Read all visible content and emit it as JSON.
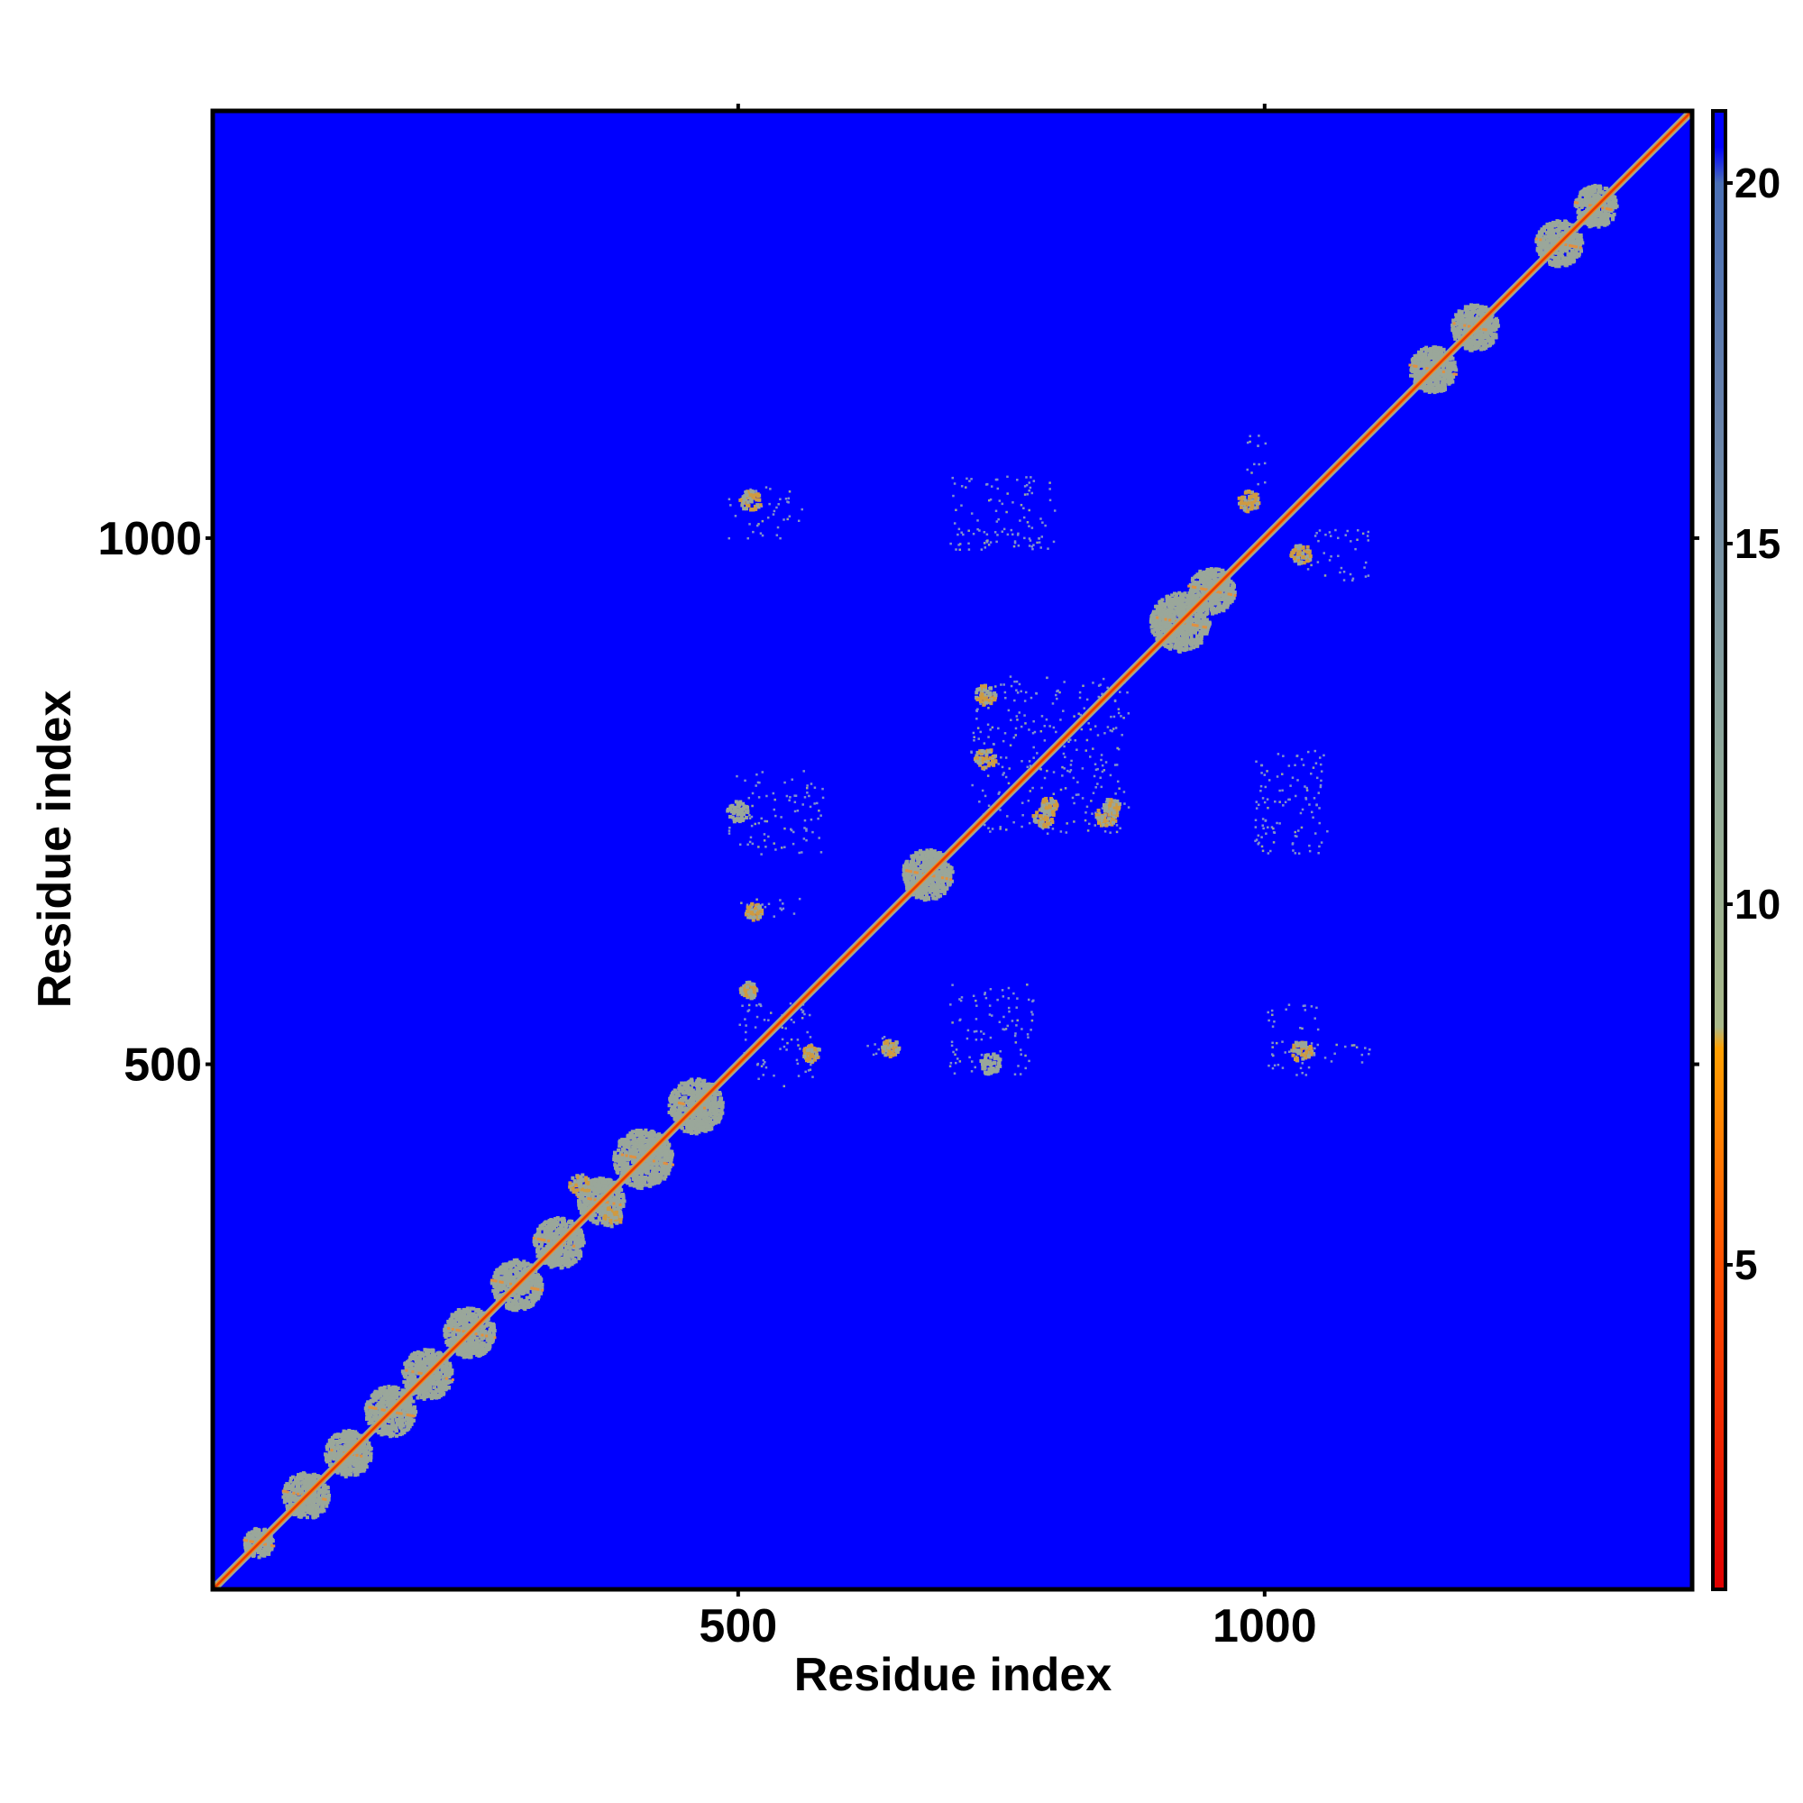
{
  "chart_data": {
    "type": "heatmap",
    "title": "",
    "xlabel": "Residue index",
    "ylabel": "Residue index",
    "xlim": [
      1,
      1406
    ],
    "ylim": [
      1,
      1406
    ],
    "x_ticks": [
      500,
      1000
    ],
    "x_tick_labels": [
      "500",
      "1000"
    ],
    "y_ticks": [
      500,
      1000
    ],
    "y_tick_labels": [
      "500",
      "1000"
    ],
    "colorbar": {
      "range": [
        0.5,
        21
      ],
      "ticks": [
        5,
        10,
        15,
        20
      ],
      "tick_labels": [
        "5",
        "10",
        "15",
        "20"
      ],
      "stops": [
        {
          "value": 0.5,
          "color": "#e00000"
        },
        {
          "value": 5,
          "color": "#ff5000"
        },
        {
          "value": 8,
          "color": "#ffa000"
        },
        {
          "value": 8.3,
          "color": "#a9b98a"
        },
        {
          "value": 12,
          "color": "#8fa89a"
        },
        {
          "value": 17,
          "color": "#6680aa"
        },
        {
          "value": 20,
          "color": "#4a6fb5"
        },
        {
          "value": 20.5,
          "color": "#0000ff"
        },
        {
          "value": 21,
          "color": "#0000ff"
        }
      ]
    },
    "background_color": "#0000ff",
    "diagonal_color": "#e83a00",
    "diagonal_domains": [
      {
        "center": 45,
        "size": 14,
        "color": "#9aa79a"
      },
      {
        "center": 90,
        "size": 22,
        "color": "#9aa79a"
      },
      {
        "center": 130,
        "size": 22,
        "color": "#9aa79a"
      },
      {
        "center": 170,
        "size": 24,
        "color": "#9aa79a"
      },
      {
        "center": 205,
        "size": 24,
        "color": "#9aa79a"
      },
      {
        "center": 245,
        "size": 24,
        "color": "#9aa79a"
      },
      {
        "center": 290,
        "size": 24,
        "color": "#9aa79a"
      },
      {
        "center": 330,
        "size": 24,
        "color": "#9aa79a"
      },
      {
        "center": 370,
        "size": 22,
        "color": "#9aa79a"
      },
      {
        "center": 410,
        "size": 28,
        "color": "#9aa79a"
      },
      {
        "center": 460,
        "size": 26,
        "color": "#9aa79a"
      },
      {
        "center": 680,
        "size": 24,
        "color": "#9aa79a"
      },
      {
        "center": 920,
        "size": 28,
        "color": "#9aa79a"
      },
      {
        "center": 950,
        "size": 22,
        "color": "#9aa79a"
      },
      {
        "center": 1160,
        "size": 22,
        "color": "#9aa79a"
      },
      {
        "center": 1200,
        "size": 22,
        "color": "#9aa79a"
      },
      {
        "center": 1280,
        "size": 22,
        "color": "#9aa79a"
      },
      {
        "center": 1315,
        "size": 20,
        "color": "#9aa79a"
      }
    ],
    "contact_clusters": [
      {
        "x": 380,
        "y": 355,
        "size": 10,
        "color": "#cf9a40"
      },
      {
        "x": 350,
        "y": 385,
        "size": 10,
        "color": "#cf9a40"
      },
      {
        "x": 512,
        "y": 1035,
        "size": 10,
        "color": "#cf9a40"
      },
      {
        "x": 1035,
        "y": 512,
        "size": 10,
        "color": "#cf9a40"
      },
      {
        "x": 985,
        "y": 1035,
        "size": 10,
        "color": "#cf9a40"
      },
      {
        "x": 1035,
        "y": 985,
        "size": 10,
        "color": "#cf9a40"
      },
      {
        "x": 735,
        "y": 850,
        "size": 10,
        "color": "#cf9a40"
      },
      {
        "x": 790,
        "y": 735,
        "size": 10,
        "color": "#cf9a40"
      },
      {
        "x": 735,
        "y": 790,
        "size": 10,
        "color": "#cf9a40"
      },
      {
        "x": 850,
        "y": 735,
        "size": 10,
        "color": "#cf9a40"
      },
      {
        "x": 515,
        "y": 645,
        "size": 8,
        "color": "#cf9a40"
      },
      {
        "x": 645,
        "y": 515,
        "size": 8,
        "color": "#cf9a40"
      },
      {
        "x": 570,
        "y": 510,
        "size": 8,
        "color": "#cf9a40"
      },
      {
        "x": 510,
        "y": 570,
        "size": 8,
        "color": "#cf9a40"
      },
      {
        "x": 740,
        "y": 500,
        "size": 10,
        "color": "#9aa79a"
      },
      {
        "x": 500,
        "y": 740,
        "size": 10,
        "color": "#9aa79a"
      },
      {
        "x": 795,
        "y": 745,
        "size": 8,
        "color": "#cf9a40"
      },
      {
        "x": 855,
        "y": 745,
        "size": 8,
        "color": "#cf9a40"
      }
    ],
    "sparse_regions": [
      {
        "x0": 490,
        "x1": 580,
        "y0": 700,
        "y1": 780
      },
      {
        "x0": 700,
        "x1": 780,
        "y0": 490,
        "y1": 580
      },
      {
        "x0": 720,
        "x1": 870,
        "y0": 720,
        "y1": 870
      },
      {
        "x0": 490,
        "x1": 560,
        "y0": 1000,
        "y1": 1050
      },
      {
        "x0": 1000,
        "x1": 1050,
        "y0": 490,
        "y1": 560
      },
      {
        "x0": 700,
        "x1": 790,
        "y0": 990,
        "y1": 1010
      },
      {
        "x0": 990,
        "x1": 1010,
        "y0": 700,
        "y1": 790
      },
      {
        "x0": 990,
        "x1": 1060,
        "y0": 700,
        "y1": 800
      },
      {
        "x0": 700,
        "x1": 800,
        "y0": 990,
        "y1": 1060
      },
      {
        "x0": 500,
        "x1": 570,
        "y0": 480,
        "y1": 560
      },
      {
        "x0": 620,
        "x1": 640,
        "y0": 500,
        "y1": 530
      },
      {
        "x0": 1040,
        "x1": 1100,
        "y0": 500,
        "y1": 520
      },
      {
        "x0": 500,
        "x1": 560,
        "y0": 640,
        "y1": 660
      },
      {
        "x0": 1040,
        "x1": 1100,
        "y0": 960,
        "y1": 1010
      },
      {
        "x0": 980,
        "x1": 1000,
        "y0": 1040,
        "y1": 1100
      }
    ]
  }
}
